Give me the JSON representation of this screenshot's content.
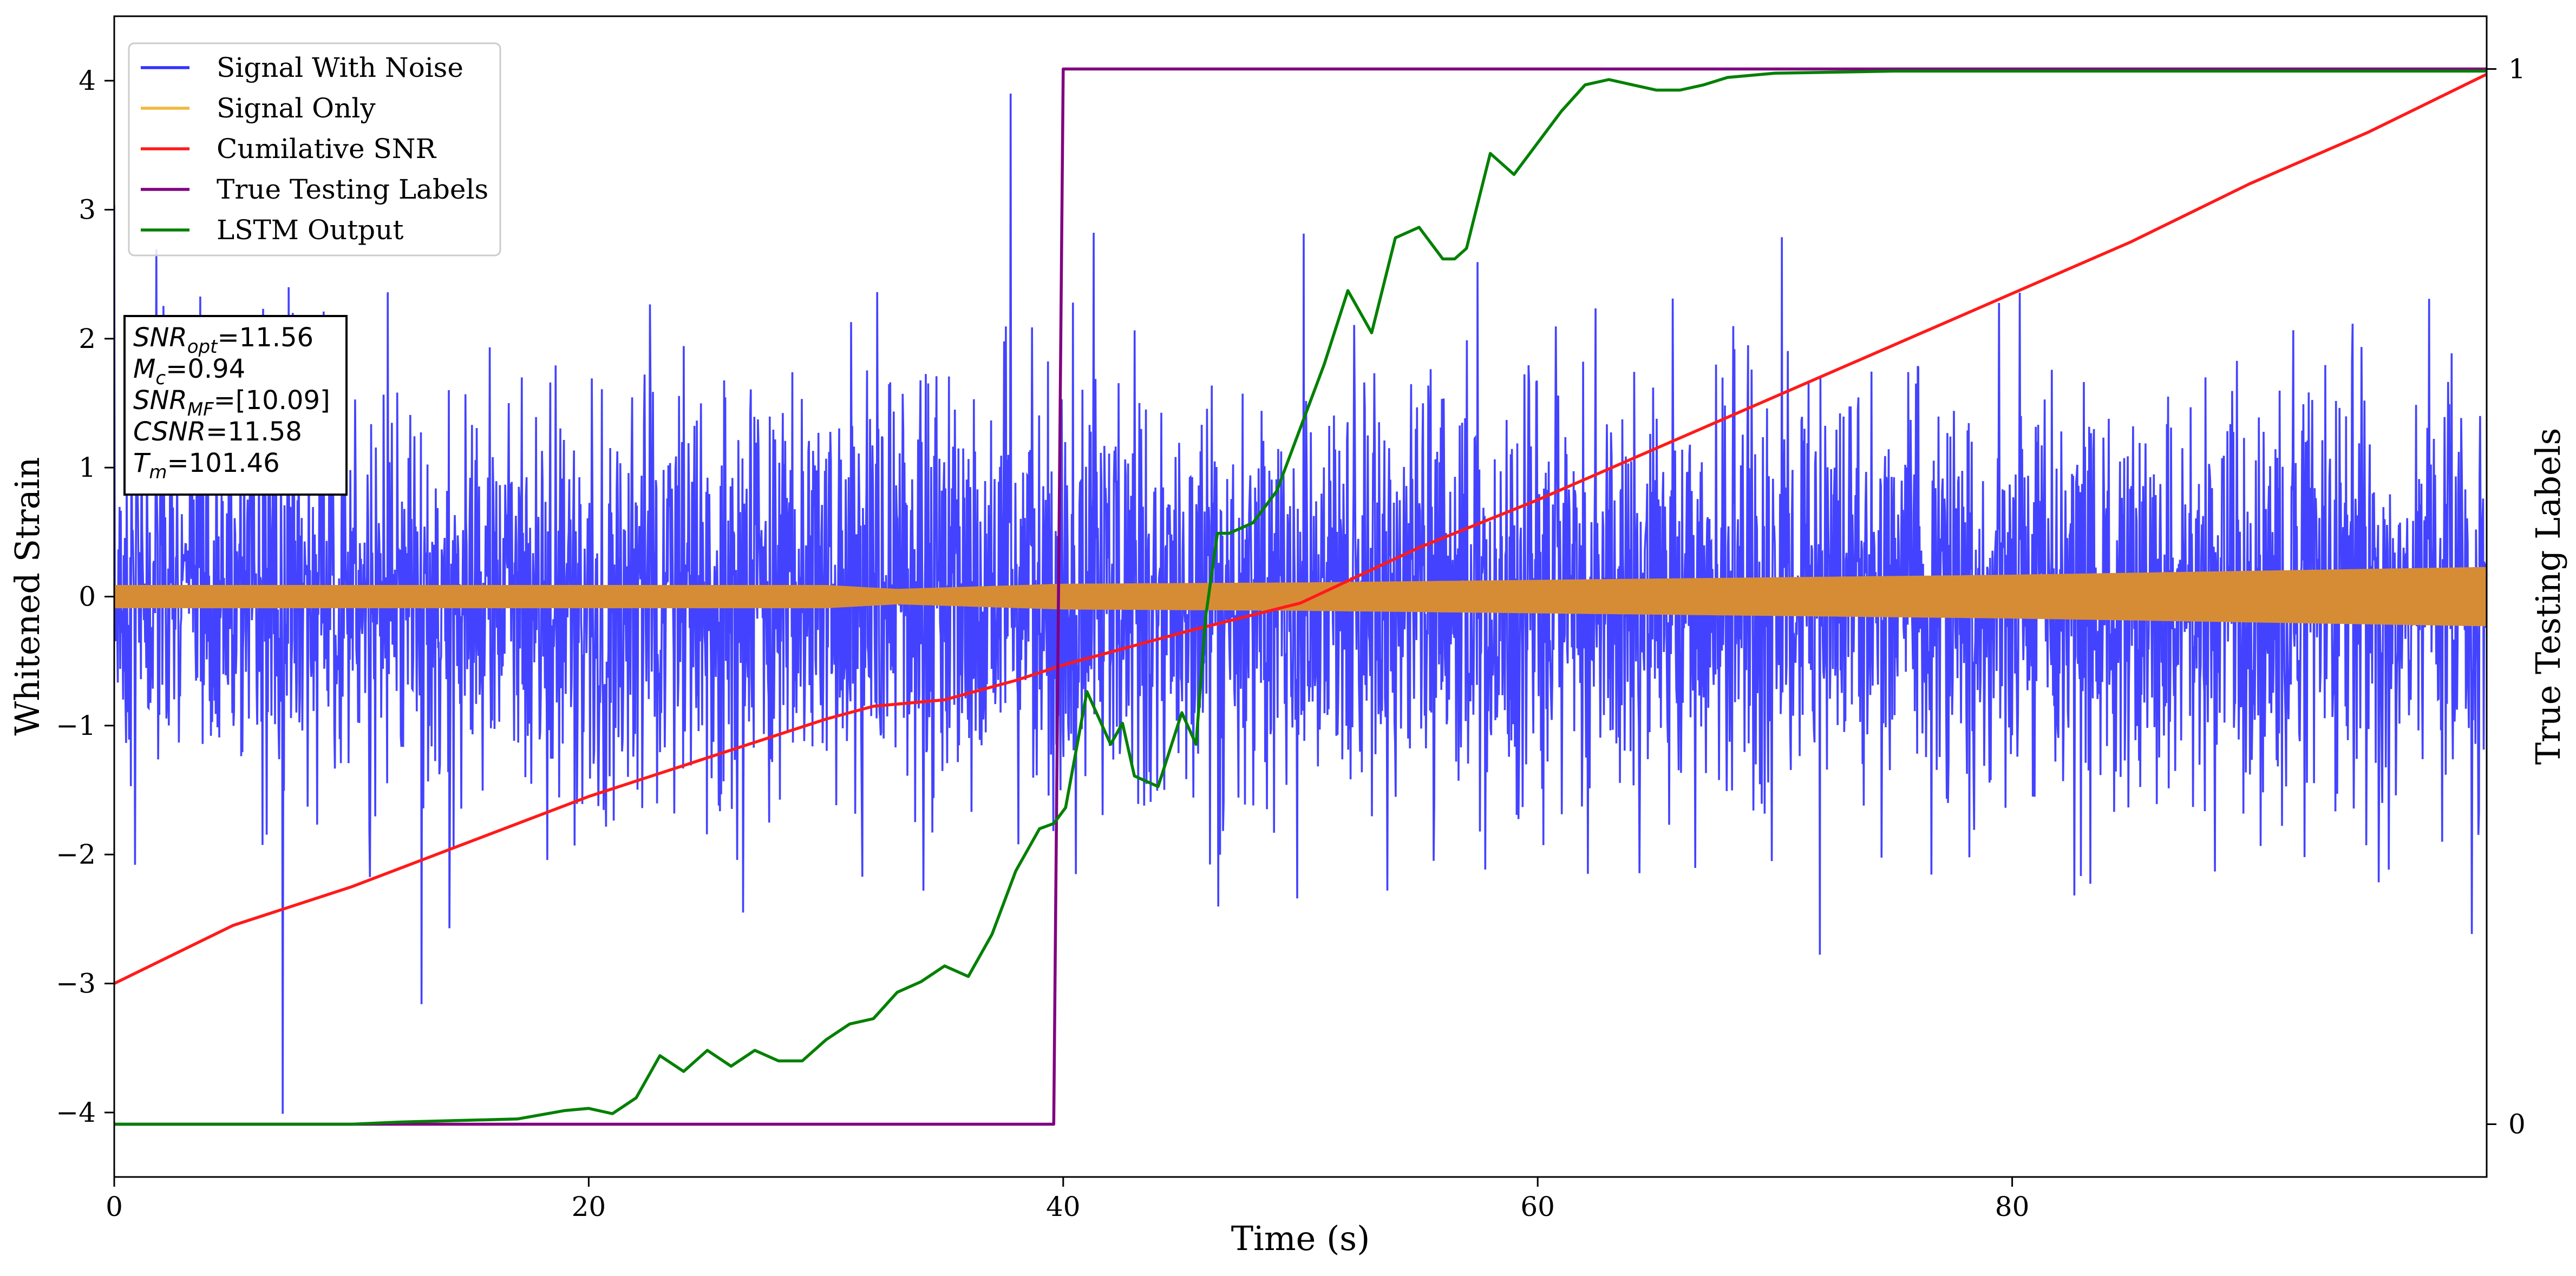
{
  "chart_data": {
    "type": "line",
    "xlabel": "Time (s)",
    "ylabel_left": "Whitened Strain",
    "ylabel_right": "True Testing Labels",
    "xlim": [
      0,
      100
    ],
    "ylim_left": [
      -4.5,
      4.5
    ],
    "ylim_right": [
      -0.05,
      1.05
    ],
    "x_ticks": [
      0,
      20,
      40,
      60,
      80
    ],
    "y_ticks_left": [
      -4,
      -3,
      -2,
      -1,
      0,
      1,
      2,
      3,
      4
    ],
    "y_ticks_right": [
      0,
      1
    ],
    "grid": false,
    "legend_position": "top-left",
    "series": [
      {
        "name": "Signal With Noise",
        "color": "#3333ff",
        "axis": "left",
        "description_of_values": "dense whitened noise, mostly within [-2, 2], peaks to about 3.9 and -4.1",
        "envelope": {
          "x": [
            0,
            100
          ],
          "typical_max": 2.0,
          "typical_min": -2.0
        }
      },
      {
        "name": "Signal Only",
        "color": "#f4b840",
        "axis": "left",
        "envelope_x": [
          0,
          10,
          20,
          30,
          33,
          40,
          50,
          60,
          70,
          80,
          90,
          100
        ],
        "envelope_amp": [
          0.09,
          0.09,
          0.09,
          0.09,
          0.06,
          0.1,
          0.11,
          0.13,
          0.15,
          0.17,
          0.2,
          0.23
        ]
      },
      {
        "name": "Cumilative SNR",
        "color": "#ff1a1a",
        "axis": "left",
        "x": [
          0,
          5,
          10,
          15,
          20,
          25,
          30,
          32,
          35,
          38,
          40,
          45,
          50,
          55,
          60,
          65,
          70,
          75,
          80,
          85,
          90,
          95,
          100
        ],
        "values": [
          -3.0,
          -2.55,
          -2.25,
          -1.9,
          -1.55,
          -1.25,
          -0.95,
          -0.85,
          -0.8,
          -0.65,
          -0.53,
          -0.28,
          -0.05,
          0.38,
          0.75,
          1.15,
          1.55,
          1.95,
          2.35,
          2.75,
          3.2,
          3.6,
          4.05
        ]
      },
      {
        "name": "True Testing Labels",
        "color": "#800080",
        "axis": "right",
        "x": [
          0,
          39.6,
          40.0,
          100
        ],
        "values": [
          0,
          0,
          1,
          1
        ]
      },
      {
        "name": "LSTM Output",
        "color": "#008000",
        "axis": "right",
        "x": [
          0,
          10,
          12,
          17,
          19,
          20,
          21,
          22,
          23,
          24,
          25,
          26,
          27,
          28,
          29,
          30,
          31,
          32,
          33,
          34,
          35,
          36,
          37,
          38,
          39,
          39.6,
          40.1,
          41,
          42,
          42.5,
          43,
          44,
          45,
          45.6,
          46,
          46.5,
          47,
          48,
          49,
          50,
          51,
          52,
          52.5,
          53,
          54,
          55,
          56,
          56.5,
          57,
          58,
          59,
          60,
          61,
          62,
          63,
          64,
          65,
          66,
          67,
          68,
          70,
          75,
          80,
          90,
          100
        ],
        "values": [
          0,
          0,
          0.002,
          0.005,
          0.013,
          0.015,
          0.01,
          0.025,
          0.065,
          0.05,
          0.07,
          0.055,
          0.07,
          0.06,
          0.06,
          0.08,
          0.095,
          0.1,
          0.125,
          0.135,
          0.15,
          0.14,
          0.18,
          0.24,
          0.28,
          0.285,
          0.3,
          0.41,
          0.36,
          0.38,
          0.33,
          0.32,
          0.39,
          0.36,
          0.48,
          0.56,
          0.56,
          0.57,
          0.6,
          0.66,
          0.72,
          0.79,
          0.77,
          0.75,
          0.84,
          0.85,
          0.82,
          0.82,
          0.83,
          0.92,
          0.9,
          0.93,
          0.96,
          0.985,
          0.99,
          0.985,
          0.98,
          0.98,
          0.985,
          0.992,
          0.996,
          0.998,
          0.998,
          0.998,
          0.998
        ]
      }
    ],
    "annotation_lines": [
      {
        "pre": "SNR",
        "sub": "opt",
        "post": "=11.56"
      },
      {
        "pre": "M",
        "sub": "c",
        "post": "=0.94"
      },
      {
        "pre": "SNR",
        "sub": "MF",
        "post": "=[10.09]"
      },
      {
        "pre": "CSNR",
        "sub": "",
        "post": "=11.58"
      },
      {
        "pre": "T",
        "sub": "m",
        "post": "=101.46"
      }
    ]
  }
}
